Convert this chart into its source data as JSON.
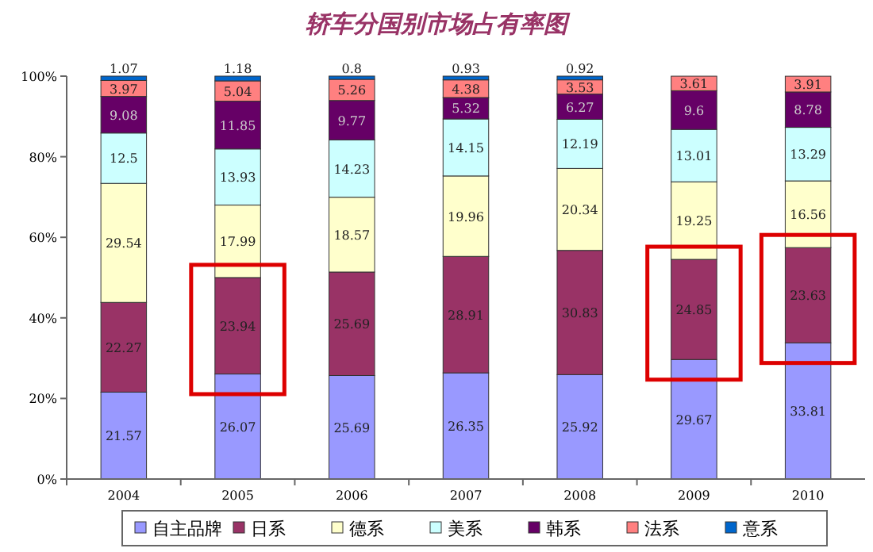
{
  "chart_data": {
    "type": "bar",
    "title": "轿车分国别市场占有率图",
    "stacked": true,
    "categories": [
      "2004",
      "2005",
      "2006",
      "2007",
      "2008",
      "2009",
      "2010"
    ],
    "series": [
      {
        "name": "自主品牌",
        "color": "#9999ff",
        "values": [
          21.57,
          26.07,
          25.69,
          26.35,
          25.92,
          29.67,
          33.81
        ]
      },
      {
        "name": "日系",
        "color": "#993366",
        "values": [
          22.27,
          23.94,
          25.69,
          28.91,
          30.83,
          24.85,
          23.63
        ]
      },
      {
        "name": "德系",
        "color": "#ffffcc",
        "values": [
          29.54,
          17.99,
          18.57,
          19.96,
          20.34,
          19.25,
          16.56
        ]
      },
      {
        "name": "美系",
        "color": "#ccffff",
        "values": [
          12.5,
          13.93,
          14.23,
          14.15,
          12.19,
          13.01,
          13.29
        ]
      },
      {
        "name": "韩系",
        "color": "#660066",
        "values": [
          9.08,
          11.85,
          9.77,
          5.32,
          6.27,
          9.6,
          8.78
        ]
      },
      {
        "name": "法系",
        "color": "#ff8080",
        "values": [
          3.97,
          5.04,
          5.26,
          4.38,
          3.53,
          3.61,
          3.91
        ]
      },
      {
        "name": "意系",
        "color": "#0066cc",
        "values": [
          1.07,
          1.18,
          0.8,
          0.93,
          0.92,
          null,
          null
        ]
      }
    ],
    "ylim": [
      0,
      100
    ],
    "yticks": [
      {
        "value": 0,
        "label": "0%"
      },
      {
        "value": 20,
        "label": "20%"
      },
      {
        "value": 40,
        "label": "40%"
      },
      {
        "value": 60,
        "label": "60%"
      },
      {
        "value": 80,
        "label": "80%"
      },
      {
        "value": 100,
        "label": "100%"
      }
    ],
    "data_labels": true,
    "legend": "bottom",
    "grid": false
  }
}
